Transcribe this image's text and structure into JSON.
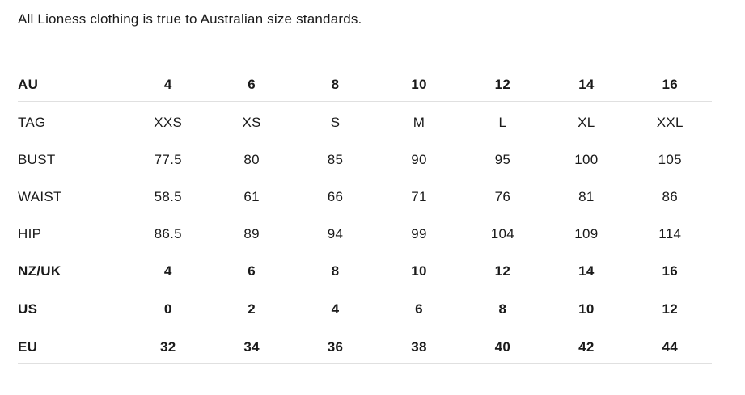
{
  "intro": {
    "text": "All Lioness clothing is true to Australian size standards."
  },
  "size_chart": {
    "rows": [
      {
        "label": "AU",
        "bold": true,
        "values": [
          "4",
          "6",
          "8",
          "10",
          "12",
          "14",
          "16"
        ]
      },
      {
        "label": "TAG",
        "bold": false,
        "values": [
          "XXS",
          "XS",
          "S",
          "M",
          "L",
          "XL",
          "XXL"
        ]
      },
      {
        "label": "BUST",
        "bold": false,
        "values": [
          "77.5",
          "80",
          "85",
          "90",
          "95",
          "100",
          "105"
        ]
      },
      {
        "label": "WAIST",
        "bold": false,
        "values": [
          "58.5",
          "61",
          "66",
          "71",
          "76",
          "81",
          "86"
        ]
      },
      {
        "label": "HIP",
        "bold": false,
        "values": [
          "86.5",
          "89",
          "94",
          "99",
          "104",
          "109",
          "114"
        ]
      },
      {
        "label": "NZ/UK",
        "bold": true,
        "values": [
          "4",
          "6",
          "8",
          "10",
          "12",
          "14",
          "16"
        ]
      },
      {
        "label": "US",
        "bold": true,
        "values": [
          "0",
          "2",
          "4",
          "6",
          "8",
          "10",
          "12"
        ]
      },
      {
        "label": "EU",
        "bold": true,
        "values": [
          "32",
          "34",
          "36",
          "38",
          "40",
          "42",
          "44"
        ]
      }
    ]
  },
  "colors": {
    "text": "#1a1a1a",
    "border": "#e0e0e0",
    "background": "#ffffff"
  }
}
